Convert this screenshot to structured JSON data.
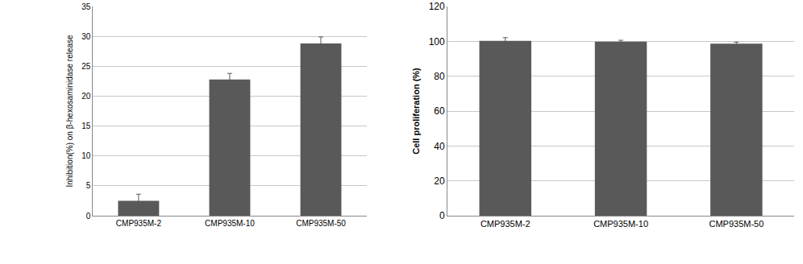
{
  "chart_data": [
    {
      "type": "bar",
      "y_label": "Inhibition(%) on β-hexosaminidase release",
      "categories": [
        "CMP935M-2",
        "CMP935M-10",
        "CMP935M-50"
      ],
      "values": [
        2.5,
        22.8,
        28.8
      ],
      "errors": [
        1.1,
        1.0,
        1.1
      ],
      "color": "#595959",
      "ylim": [
        0,
        35
      ],
      "yticks": [
        0,
        5,
        10,
        15,
        20,
        25,
        30,
        35
      ],
      "grid": true
    },
    {
      "type": "bar",
      "y_label": "Cell proliferation (%)",
      "categories": [
        "CMP935M-2",
        "CMP935M-10",
        "CMP935M-50"
      ],
      "values": [
        100.3,
        99.8,
        98.7
      ],
      "errors": [
        1.8,
        0.8,
        0.8
      ],
      "color": "#595959",
      "ylim": [
        0,
        120
      ],
      "yticks": [
        0,
        20,
        40,
        60,
        80,
        100,
        120
      ],
      "grid": true
    }
  ]
}
